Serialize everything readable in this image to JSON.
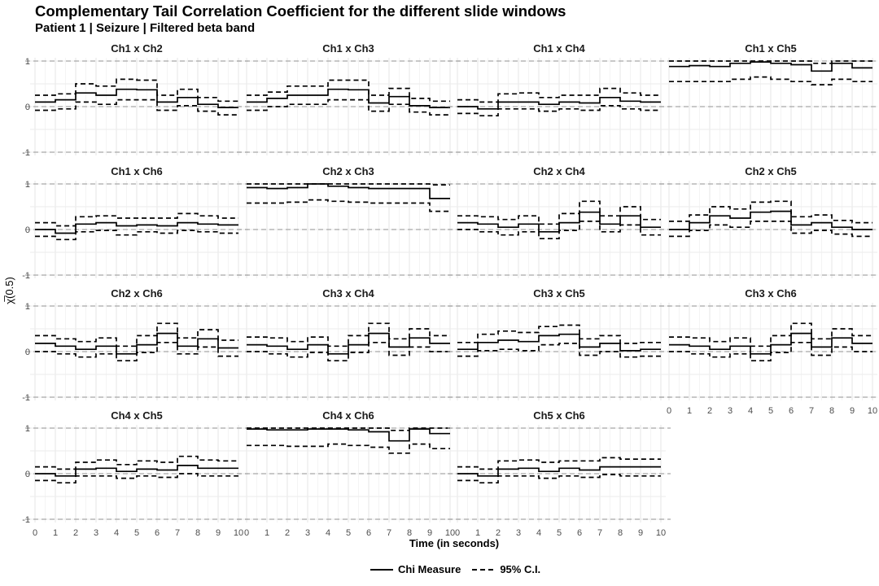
{
  "title": "Complementary Tail Correlation Coefficient for the different slide windows",
  "subtitle": "Patient 1 | Seizure | Filtered beta band",
  "legend": {
    "chi_label": "Chi Measure",
    "ci_label": "95% C.I."
  },
  "chart_data": {
    "type": "line",
    "step": true,
    "xlabel": "Time (in seconds)",
    "ylabel": "χ̅(0.5)",
    "xlim": [
      0,
      10
    ],
    "ylim": [
      -1,
      1
    ],
    "x_ticks": [
      0,
      1,
      2,
      3,
      4,
      5,
      6,
      7,
      8,
      9,
      10
    ],
    "y_ticks": [
      -1,
      0,
      1
    ],
    "reference_lines": [
      -1,
      0,
      1
    ],
    "grid": true,
    "legend_position": "bottom",
    "x_breaks": [
      0,
      1,
      2,
      3,
      4,
      5,
      6,
      7,
      8,
      9,
      10
    ],
    "panels": [
      {
        "label": "Ch1 x Ch2",
        "chi": [
          0.1,
          0.15,
          0.3,
          0.25,
          0.38,
          0.37,
          0.1,
          0.2,
          0.05,
          -0.02
        ],
        "upper": [
          0.25,
          0.28,
          0.5,
          0.45,
          0.6,
          0.58,
          0.25,
          0.38,
          0.2,
          0.12
        ],
        "lower": [
          -0.08,
          -0.05,
          0.1,
          0.05,
          0.15,
          0.15,
          -0.08,
          0.02,
          -0.1,
          -0.18
        ]
      },
      {
        "label": "Ch1 x Ch3",
        "chi": [
          0.1,
          0.18,
          0.25,
          0.25,
          0.38,
          0.37,
          0.08,
          0.22,
          0.02,
          -0.02
        ],
        "upper": [
          0.25,
          0.32,
          0.45,
          0.45,
          0.58,
          0.58,
          0.25,
          0.4,
          0.18,
          0.12
        ],
        "lower": [
          -0.08,
          0.0,
          0.05,
          0.05,
          0.15,
          0.15,
          -0.1,
          0.05,
          -0.12,
          -0.18
        ]
      },
      {
        "label": "Ch1 x Ch4",
        "chi": [
          0.0,
          -0.05,
          0.1,
          0.1,
          0.05,
          0.1,
          0.08,
          0.2,
          0.12,
          0.1
        ],
        "upper": [
          0.15,
          0.1,
          0.28,
          0.3,
          0.2,
          0.25,
          0.25,
          0.4,
          0.3,
          0.25
        ],
        "lower": [
          -0.15,
          -0.2,
          -0.05,
          -0.05,
          -0.1,
          -0.05,
          -0.08,
          0.02,
          -0.05,
          -0.08
        ]
      },
      {
        "label": "Ch1 x Ch5",
        "chi": [
          0.88,
          0.9,
          0.88,
          0.95,
          0.98,
          0.95,
          0.92,
          0.78,
          0.95,
          0.85
        ],
        "upper": [
          1.0,
          1.0,
          1.0,
          1.0,
          1.0,
          1.0,
          1.0,
          0.95,
          1.0,
          1.0
        ],
        "lower": [
          0.55,
          0.55,
          0.55,
          0.6,
          0.65,
          0.6,
          0.55,
          0.48,
          0.6,
          0.55
        ]
      },
      {
        "label": "Ch1 x Ch6",
        "chi": [
          0.0,
          -0.08,
          0.12,
          0.15,
          0.08,
          0.1,
          0.08,
          0.15,
          0.12,
          0.1
        ],
        "upper": [
          0.15,
          0.08,
          0.28,
          0.3,
          0.25,
          0.25,
          0.25,
          0.35,
          0.3,
          0.25
        ],
        "lower": [
          -0.15,
          -0.22,
          -0.05,
          -0.02,
          -0.12,
          -0.05,
          -0.08,
          -0.02,
          -0.05,
          -0.08
        ]
      },
      {
        "label": "Ch2 x Ch3",
        "chi": [
          0.92,
          0.9,
          0.92,
          1.0,
          0.95,
          0.92,
          0.9,
          0.9,
          0.9,
          0.68
        ],
        "upper": [
          1.0,
          1.0,
          1.0,
          1.0,
          1.0,
          1.0,
          1.0,
          1.0,
          1.0,
          0.98
        ],
        "lower": [
          0.58,
          0.58,
          0.6,
          0.65,
          0.62,
          0.6,
          0.58,
          0.58,
          0.58,
          0.4
        ]
      },
      {
        "label": "Ch2 x Ch4",
        "chi": [
          0.15,
          0.12,
          0.05,
          0.12,
          -0.05,
          0.15,
          0.38,
          0.12,
          0.3,
          0.05
        ],
        "upper": [
          0.3,
          0.28,
          0.22,
          0.3,
          0.12,
          0.35,
          0.62,
          0.3,
          0.5,
          0.22
        ],
        "lower": [
          0.0,
          -0.05,
          -0.12,
          -0.05,
          -0.2,
          -0.02,
          0.18,
          -0.05,
          0.1,
          -0.12
        ]
      },
      {
        "label": "Ch2 x Ch5",
        "chi": [
          0.0,
          0.15,
          0.3,
          0.25,
          0.38,
          0.4,
          0.1,
          0.15,
          0.05,
          0.0
        ],
        "upper": [
          0.18,
          0.32,
          0.5,
          0.45,
          0.6,
          0.62,
          0.28,
          0.32,
          0.2,
          0.15
        ],
        "lower": [
          -0.15,
          -0.02,
          0.1,
          0.05,
          0.18,
          0.18,
          -0.08,
          -0.02,
          -0.1,
          -0.15
        ]
      },
      {
        "label": "Ch2 x Ch6",
        "chi": [
          0.18,
          0.12,
          0.05,
          0.12,
          -0.05,
          0.15,
          0.4,
          0.12,
          0.28,
          0.08
        ],
        "upper": [
          0.35,
          0.28,
          0.22,
          0.3,
          0.12,
          0.35,
          0.62,
          0.3,
          0.48,
          0.25
        ],
        "lower": [
          0.0,
          -0.05,
          -0.12,
          -0.05,
          -0.2,
          -0.02,
          0.2,
          -0.05,
          0.1,
          -0.1
        ]
      },
      {
        "label": "Ch3 x Ch4",
        "chi": [
          0.15,
          0.12,
          0.05,
          0.15,
          -0.05,
          0.15,
          0.4,
          0.1,
          0.3,
          0.18
        ],
        "upper": [
          0.32,
          0.3,
          0.22,
          0.32,
          0.12,
          0.35,
          0.62,
          0.28,
          0.5,
          0.35
        ],
        "lower": [
          0.0,
          -0.05,
          -0.12,
          -0.02,
          -0.2,
          -0.02,
          0.2,
          -0.08,
          0.1,
          0.0
        ]
      },
      {
        "label": "Ch3 x Ch5",
        "chi": [
          0.05,
          0.2,
          0.25,
          0.22,
          0.35,
          0.38,
          0.1,
          0.18,
          0.02,
          0.05
        ],
        "upper": [
          0.2,
          0.38,
          0.45,
          0.42,
          0.55,
          0.58,
          0.28,
          0.35,
          0.18,
          0.2
        ],
        "lower": [
          -0.1,
          0.02,
          0.05,
          0.02,
          0.15,
          0.18,
          -0.08,
          0.0,
          -0.12,
          -0.1
        ]
      },
      {
        "label": "Ch3 x Ch6",
        "chi": [
          0.15,
          0.12,
          0.05,
          0.12,
          -0.05,
          0.15,
          0.4,
          0.1,
          0.3,
          0.18
        ],
        "upper": [
          0.32,
          0.3,
          0.22,
          0.3,
          0.12,
          0.35,
          0.62,
          0.28,
          0.5,
          0.35
        ],
        "lower": [
          0.0,
          -0.05,
          -0.12,
          -0.05,
          -0.2,
          -0.02,
          0.2,
          -0.08,
          0.1,
          0.0
        ]
      },
      {
        "label": "Ch4 x Ch5",
        "chi": [
          0.0,
          -0.05,
          0.1,
          0.12,
          0.05,
          0.1,
          0.08,
          0.18,
          0.12,
          0.12
        ],
        "upper": [
          0.15,
          0.1,
          0.25,
          0.3,
          0.2,
          0.28,
          0.25,
          0.38,
          0.3,
          0.28
        ],
        "lower": [
          -0.15,
          -0.2,
          -0.05,
          -0.05,
          -0.1,
          -0.05,
          -0.08,
          0.0,
          -0.05,
          -0.05
        ]
      },
      {
        "label": "Ch4 x Ch6",
        "chi": [
          0.98,
          0.96,
          0.96,
          0.98,
          0.98,
          0.96,
          0.92,
          0.72,
          0.98,
          0.88
        ],
        "upper": [
          1.0,
          1.0,
          1.0,
          1.0,
          1.0,
          1.0,
          1.0,
          0.95,
          1.0,
          1.0
        ],
        "lower": [
          0.62,
          0.62,
          0.6,
          0.6,
          0.65,
          0.62,
          0.58,
          0.45,
          0.65,
          0.55
        ]
      },
      {
        "label": "Ch5 x Ch6",
        "chi": [
          0.0,
          -0.05,
          0.1,
          0.12,
          0.05,
          0.12,
          0.08,
          0.15,
          0.15,
          0.15
        ],
        "upper": [
          0.15,
          0.1,
          0.28,
          0.3,
          0.25,
          0.28,
          0.28,
          0.35,
          0.32,
          0.32
        ],
        "lower": [
          -0.15,
          -0.2,
          -0.05,
          -0.05,
          -0.1,
          -0.05,
          -0.08,
          -0.02,
          -0.05,
          -0.05
        ]
      }
    ]
  }
}
